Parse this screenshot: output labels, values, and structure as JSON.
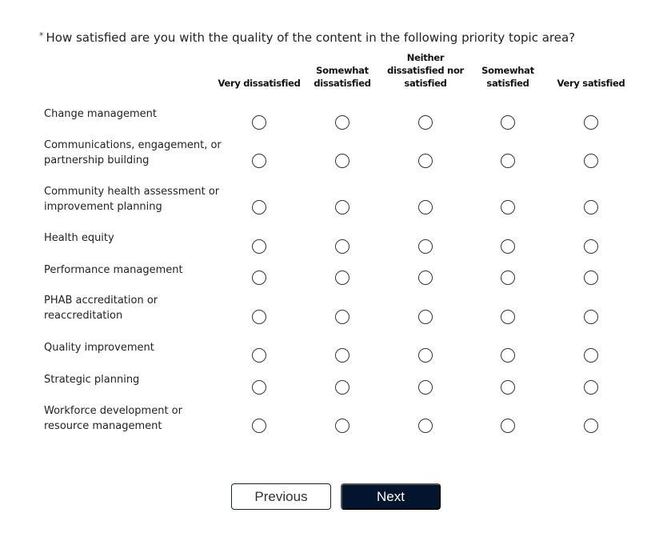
{
  "question": {
    "required_mark": "*",
    "text": "How satisfied are you with the quality of the content in the following priority topic area?"
  },
  "columns": [
    "Very dissatisfied",
    "Somewhat dissatisfied",
    "Neither dissatisfied nor satisfied",
    "Somewhat satisfied",
    "Very satisfied"
  ],
  "rows": [
    "Change management",
    "Communications, engagement, or partnership building",
    "Community health assessment or improvement planning",
    "Health equity",
    "Performance management",
    "PHAB accreditation or reaccreditation",
    "Quality improvement",
    "Strategic planning",
    "Workforce development or resource management"
  ],
  "buttons": {
    "previous": "Previous",
    "next": "Next"
  }
}
